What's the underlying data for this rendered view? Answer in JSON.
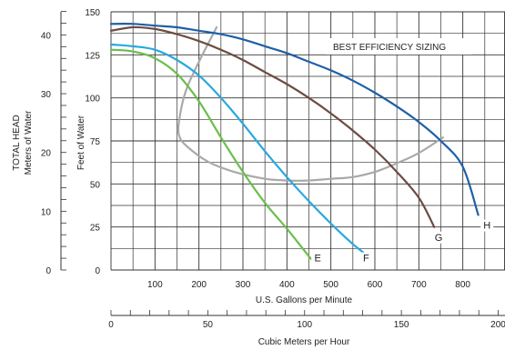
{
  "chart_data": {
    "type": "line",
    "annotation": "BEST EFFICIENCY SIZING",
    "primary_x": {
      "label": "U.S. Gallons per Minute",
      "range": [
        0,
        900
      ],
      "ticks": [
        100,
        200,
        300,
        400,
        500,
        600,
        700,
        800
      ],
      "tick_labels": [
        "100",
        "200",
        "300",
        "400",
        "500",
        "600",
        "700",
        "800"
      ]
    },
    "secondary_x": {
      "label": "Cubic Meters per Hour",
      "range": [
        0,
        200
      ],
      "ticks": [
        0,
        50,
        100,
        150,
        200
      ],
      "tick_labels": [
        "0",
        "50",
        "100",
        "150",
        "200"
      ]
    },
    "primary_y": {
      "label": "Feet of Water",
      "range": [
        0,
        150
      ],
      "ticks": [
        0,
        25,
        50,
        75,
        100,
        125,
        150
      ],
      "tick_labels": [
        "0",
        "25",
        "50",
        "75",
        "100",
        "125",
        "150"
      ]
    },
    "secondary_y": {
      "label_line1": "TOTAL HEAD",
      "label_line2": "Meters of Water",
      "range": [
        0,
        46
      ],
      "ticks": [
        0,
        10,
        20,
        30,
        40
      ],
      "tick_labels": [
        "0",
        "10",
        "20",
        "30",
        "40"
      ]
    },
    "grid": true,
    "series": [
      {
        "name": "E",
        "color": "#6abf4b",
        "label_at": [
          470,
          5
        ],
        "points": [
          [
            0,
            128
          ],
          [
            50,
            127
          ],
          [
            100,
            123
          ],
          [
            150,
            114
          ],
          [
            200,
            98
          ],
          [
            250,
            77
          ],
          [
            300,
            57
          ],
          [
            350,
            39
          ],
          [
            400,
            24
          ],
          [
            450,
            8
          ],
          [
            465,
            4
          ]
        ]
      },
      {
        "name": "F",
        "color": "#27a8df",
        "label_at": [
          580,
          5
        ],
        "points": [
          [
            0,
            131
          ],
          [
            50,
            130
          ],
          [
            100,
            128
          ],
          [
            150,
            122
          ],
          [
            200,
            113
          ],
          [
            250,
            100
          ],
          [
            300,
            85
          ],
          [
            350,
            69
          ],
          [
            400,
            54
          ],
          [
            450,
            40
          ],
          [
            500,
            27
          ],
          [
            550,
            15
          ],
          [
            575,
            10
          ]
        ]
      },
      {
        "name": "G",
        "color": "#6d4c41",
        "label_at": [
          745,
          17
        ],
        "points": [
          [
            0,
            139
          ],
          [
            50,
            141
          ],
          [
            100,
            140
          ],
          [
            150,
            137
          ],
          [
            200,
            133
          ],
          [
            250,
            128
          ],
          [
            300,
            122
          ],
          [
            350,
            115
          ],
          [
            400,
            108
          ],
          [
            450,
            100
          ],
          [
            500,
            91
          ],
          [
            550,
            81
          ],
          [
            600,
            70
          ],
          [
            650,
            57
          ],
          [
            700,
            42
          ],
          [
            735,
            25
          ]
        ]
      },
      {
        "name": "H",
        "color": "#1f5fa8",
        "label_at": [
          855,
          24
        ],
        "points": [
          [
            0,
            143
          ],
          [
            50,
            143
          ],
          [
            100,
            142
          ],
          [
            150,
            141
          ],
          [
            200,
            139
          ],
          [
            250,
            137
          ],
          [
            300,
            134
          ],
          [
            350,
            130
          ],
          [
            400,
            126
          ],
          [
            450,
            121
          ],
          [
            500,
            116
          ],
          [
            550,
            110
          ],
          [
            600,
            103
          ],
          [
            650,
            95
          ],
          [
            700,
            86
          ],
          [
            750,
            75
          ],
          [
            800,
            60
          ],
          [
            835,
            32
          ]
        ]
      }
    ],
    "efficiency_boundary": {
      "color": "#a9a9a9",
      "points": [
        [
          240,
          141
        ],
        [
          200,
          121
        ],
        [
          170,
          104
        ],
        [
          155,
          87
        ],
        [
          155,
          78
        ],
        [
          172,
          72
        ],
        [
          220,
          63
        ],
        [
          280,
          57
        ],
        [
          350,
          53
        ],
        [
          400,
          52
        ],
        [
          450,
          52
        ],
        [
          500,
          53
        ],
        [
          550,
          54
        ],
        [
          600,
          57
        ],
        [
          650,
          62
        ],
        [
          700,
          68
        ],
        [
          755,
          77
        ]
      ]
    }
  }
}
